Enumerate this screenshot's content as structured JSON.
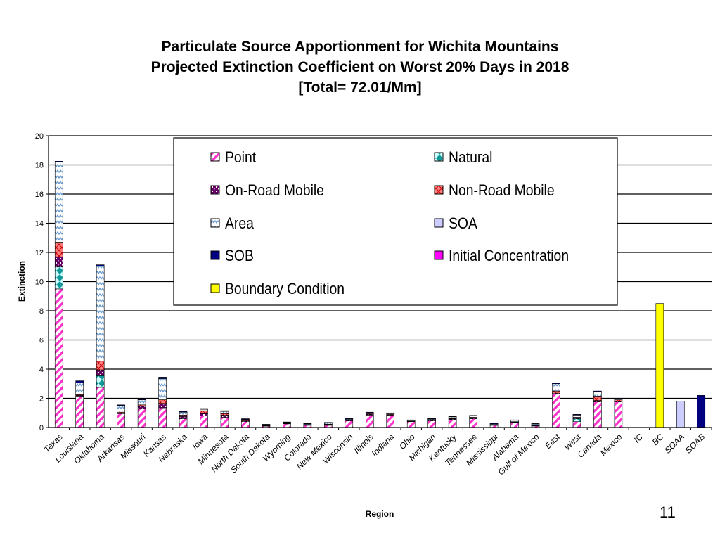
{
  "chart_data": {
    "type": "bar",
    "stacked": true,
    "title": [
      "Particulate Source Apportionment for Wichita Mountains",
      "Projected Extinction Coefficient on Worst 20% Days in 2018",
      "[Total= 72.01/Mm]"
    ],
    "xlabel": "Region",
    "ylabel": "Extinction",
    "ylim": [
      0,
      20
    ],
    "yticks": [
      0,
      2,
      4,
      6,
      8,
      10,
      12,
      14,
      16,
      18,
      20
    ],
    "grid": true,
    "legend_position": "top-right",
    "categories": [
      "Texas",
      "Louisiana",
      "Oklahoma",
      "Arkansas",
      "Missouri",
      "Kansas",
      "Nebraska",
      "Iowa",
      "Minnesota",
      "North Dakota",
      "South Dakota",
      "Wyoming",
      "Colorado",
      "New Mexico",
      "Wisconsin",
      "Illinois",
      "Indiana",
      "Ohio",
      "Michigan",
      "Kentucky",
      "Tennessee",
      "Mississippi",
      "Alabama",
      "Gulf of Mexico",
      "East",
      "West",
      "Canada",
      "Mexico",
      "IC",
      "BC",
      "SOAA",
      "SOAB"
    ],
    "series": [
      {
        "name": "Point",
        "color": "#ff33cc",
        "pattern": "diag-stripe",
        "values": [
          9.5,
          2.15,
          2.75,
          0.95,
          1.3,
          1.35,
          0.6,
          0.8,
          0.7,
          0.4,
          0.1,
          0.25,
          0.15,
          0.15,
          0.45,
          0.85,
          0.8,
          0.4,
          0.45,
          0.55,
          0.6,
          0.15,
          0.35,
          0.1,
          2.3,
          0.4,
          1.75,
          1.75,
          0,
          0,
          0,
          0
        ]
      },
      {
        "name": "Natural",
        "color": "#119999",
        "pattern": "diamond",
        "values": [
          1.5,
          0,
          0.8,
          0,
          0,
          0,
          0,
          0,
          0,
          0,
          0,
          0,
          0,
          0,
          0,
          0,
          0,
          0,
          0,
          0,
          0,
          0,
          0,
          0,
          0,
          0.2,
          0,
          0,
          0,
          0,
          0,
          0
        ]
      },
      {
        "name": "On-Road Mobile",
        "color": "#660066",
        "pattern": "dots",
        "values": [
          0.7,
          0.05,
          0.4,
          0.05,
          0.15,
          0.3,
          0.15,
          0.15,
          0.15,
          0.05,
          0.02,
          0.03,
          0.03,
          0.05,
          0.05,
          0.05,
          0.05,
          0.03,
          0.05,
          0.05,
          0.05,
          0.03,
          0.03,
          0.03,
          0.05,
          0.05,
          0.1,
          0.05,
          0,
          0,
          0,
          0
        ]
      },
      {
        "name": "Non-Road Mobile",
        "color": "#ff4d4d",
        "pattern": "cross",
        "values": [
          1.0,
          0.05,
          0.6,
          0.05,
          0.1,
          0.25,
          0.1,
          0.2,
          0.1,
          0.05,
          0.03,
          0.02,
          0.02,
          0.03,
          0.05,
          0.05,
          0.05,
          0.02,
          0.03,
          0.03,
          0.05,
          0.02,
          0.02,
          0.02,
          0.15,
          0.05,
          0.3,
          0.1,
          0,
          0,
          0,
          0
        ]
      },
      {
        "name": "Area",
        "color": "#6699cc",
        "pattern": "zigzag",
        "values": [
          5.5,
          0.8,
          6.5,
          0.45,
          0.35,
          1.45,
          0.2,
          0.1,
          0.15,
          0.05,
          0.05,
          0.05,
          0.05,
          0.1,
          0.05,
          0.05,
          0.05,
          0.05,
          0.05,
          0.1,
          0.1,
          0.05,
          0.1,
          0.1,
          0.5,
          0.15,
          0.3,
          0.05,
          0,
          0,
          0,
          0
        ]
      },
      {
        "name": "SOA",
        "color": "#ccccff",
        "pattern": "solid",
        "values": [
          0,
          0,
          0,
          0,
          0,
          0,
          0,
          0,
          0,
          0,
          0,
          0,
          0,
          0,
          0,
          0,
          0,
          0,
          0,
          0,
          0,
          0,
          0,
          0,
          0,
          0,
          0,
          0,
          0,
          0,
          1.8,
          0
        ]
      },
      {
        "name": "SOB",
        "color": "#000080",
        "pattern": "solid",
        "values": [
          0.05,
          0.15,
          0.1,
          0.05,
          0.05,
          0.1,
          0.05,
          0.05,
          0.05,
          0.05,
          0.02,
          0.03,
          0.03,
          0.02,
          0.05,
          0.05,
          0.05,
          0.02,
          0.03,
          0.03,
          0.03,
          0.05,
          0.02,
          0.02,
          0.05,
          0.05,
          0.05,
          0.05,
          0,
          0,
          0,
          2.2
        ]
      },
      {
        "name": "Initial Concentration",
        "color": "#ff00ff",
        "pattern": "solid",
        "values": [
          0,
          0,
          0,
          0,
          0,
          0,
          0,
          0,
          0,
          0,
          0,
          0,
          0,
          0,
          0,
          0,
          0,
          0,
          0,
          0,
          0,
          0,
          0,
          0,
          0,
          0,
          0,
          0,
          0,
          0,
          0,
          0
        ]
      },
      {
        "name": "Boundary Condition",
        "color": "#ffff00",
        "pattern": "solid",
        "values": [
          0,
          0,
          0,
          0,
          0,
          0,
          0,
          0,
          0,
          0,
          0,
          0,
          0,
          0,
          0,
          0,
          0,
          0,
          0,
          0,
          0,
          0,
          0,
          0,
          0,
          0,
          0,
          0,
          0,
          8.5,
          0,
          0
        ]
      }
    ]
  },
  "page_number": "11"
}
